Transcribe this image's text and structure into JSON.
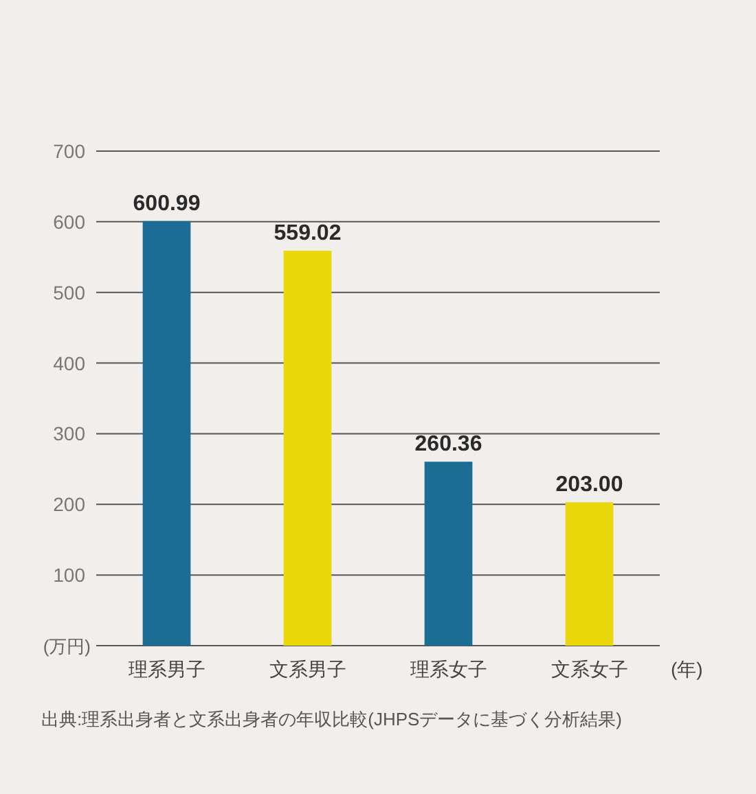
{
  "chart_data": {
    "type": "bar",
    "categories": [
      "理系男子",
      "文系男子",
      "理系女子",
      "文系女子"
    ],
    "values": [
      600.99,
      559.02,
      260.36,
      203.0
    ],
    "colors": [
      "#1b6d94",
      "#e8d80c",
      "#1b6d94",
      "#e8d80c"
    ],
    "value_labels": [
      "600.99",
      "559.02",
      "260.36",
      "203.00"
    ],
    "ylabel": "(万円)",
    "xlabel": "(年)",
    "ylim": [
      0,
      700
    ],
    "yticks": [
      {
        "value": 0,
        "label": null
      },
      100,
      200,
      300,
      400,
      500,
      600,
      700
    ],
    "grid": "y",
    "annotations": [
      "出典:理系出身者と文系出身者の年収比較(JHPSデータに基づく分析結果)"
    ]
  }
}
